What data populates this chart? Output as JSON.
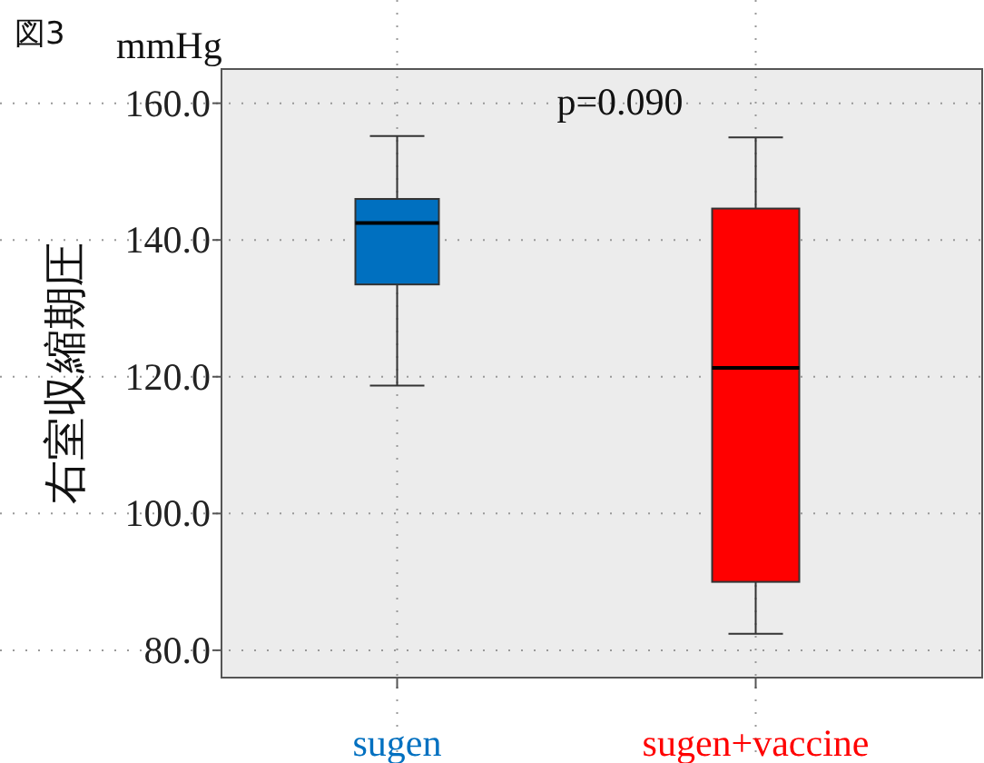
{
  "chart_data": {
    "type": "box",
    "ylabel": "右室収縮期圧",
    "categories": [
      "sugen",
      "sugen+vaccine"
    ],
    "boxes": [
      {
        "low": 118.7,
        "q1": 133.5,
        "median": 142.5,
        "q3": 146,
        "high": 155.2
      },
      {
        "low": 82.4,
        "q1": 90,
        "median": 121.3,
        "q3": 144.6,
        "high": 155
      }
    ],
    "colors": [
      "#0070c0",
      "#ff0000"
    ],
    "ylim": [
      76,
      165
    ],
    "yticks": [
      {
        "value": 80,
        "label": "80.0"
      },
      {
        "value": 100,
        "label": "100.0"
      },
      {
        "value": 120,
        "label": "120.0"
      },
      {
        "value": 140,
        "label": "140.0"
      },
      {
        "value": 160,
        "label": "160.0"
      }
    ],
    "grid": true,
    "annotations": [
      "図3",
      "mmHg",
      "p=0.090"
    ]
  }
}
